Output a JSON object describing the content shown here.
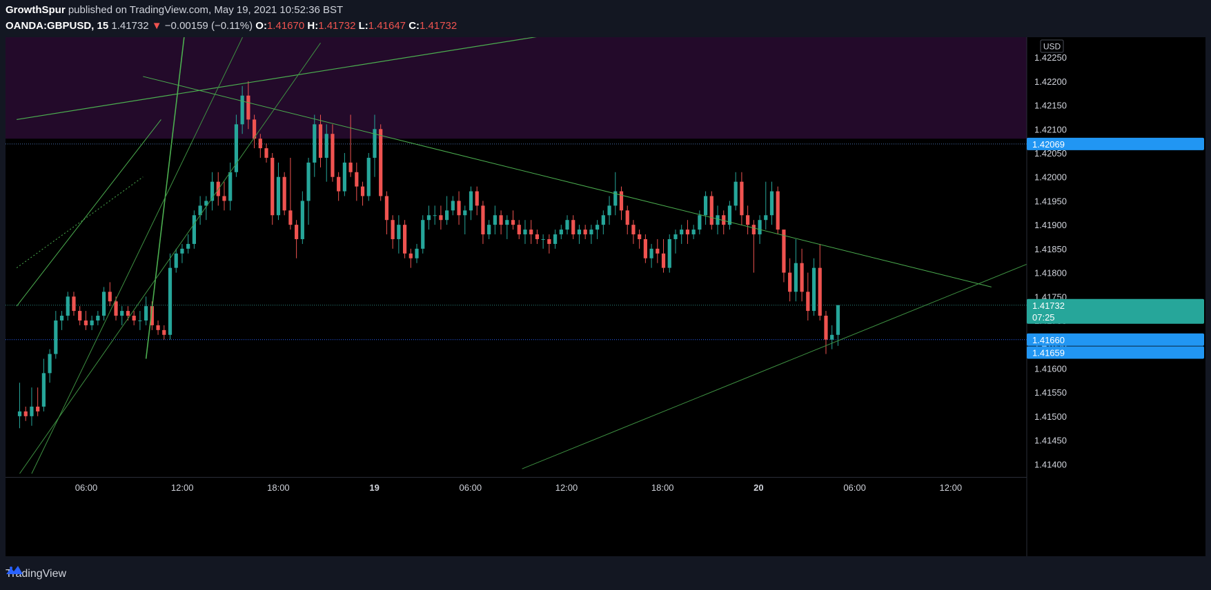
{
  "header": {
    "author": "GrowthSpur",
    "published_text": "published on TradingView.com, May 19, 2021 10:52:36 BST",
    "symbol": "OANDA:GBPUSD, 15",
    "last": "1.41732",
    "change": "−0.00159 (−0.11%)",
    "open_label": "O:",
    "open": "1.41670",
    "high_label": "H:",
    "high": "1.41732",
    "low_label": "L:",
    "low": "1.41647",
    "close_label": "C:",
    "close": "1.41732"
  },
  "footer": {
    "brand": "TradingView"
  },
  "colors": {
    "up": "#26a69a",
    "down": "#ef5350",
    "zone": "#230a2a",
    "trend": "#4caf50",
    "label_blue": "#2196f3",
    "label_teal": "#26a69a"
  },
  "chart_data": {
    "type": "candlestick",
    "currency": "USD",
    "y_ticks": [
      1.4225,
      1.422,
      1.4215,
      1.421,
      1.4205,
      1.42,
      1.4195,
      1.419,
      1.4185,
      1.418,
      1.4175,
      1.417,
      1.4165,
      1.416,
      1.4155,
      1.415,
      1.4145,
      1.414
    ],
    "y_tick_labels": [
      "1.42250",
      "1.42200",
      "1.42150",
      "1.42100",
      "1.42050",
      "1.42000",
      "1.41950",
      "1.41900",
      "1.41850",
      "1.41800",
      "1.41750",
      "1.41700",
      "1.41650",
      "1.41600",
      "1.41550",
      "1.41500",
      "1.41450",
      "1.41400"
    ],
    "ylim": [
      1.41373,
      1.42292
    ],
    "x_ticks": [
      "06:00",
      "12:00",
      "18:00",
      "19",
      "06:00",
      "12:00",
      "18:00",
      "20",
      "06:00",
      "12:00"
    ],
    "bars_per_hour": 4,
    "zone": {
      "from": 1.4208,
      "to": 1.423
    },
    "levels": [
      {
        "value": 1.42069,
        "label": "1.42069",
        "color": "#2196f3",
        "line": "#4a6fb0"
      },
      {
        "value": 1.41732,
        "label": "1.41732",
        "sublabel": "07:25",
        "color": "#26a69a",
        "line": "#2b8b82"
      },
      {
        "value": 1.4166,
        "label": "1.41660",
        "color": "#2196f3",
        "line": "#2962ff"
      },
      {
        "value": 1.41659,
        "label": "1.41659",
        "color": "#2196f3",
        "line": ""
      }
    ],
    "candles": [
      [
        1.415,
        1.4157,
        1.41475,
        1.4151
      ],
      [
        1.4151,
        1.4152,
        1.4149,
        1.415
      ],
      [
        1.415,
        1.4156,
        1.4148,
        1.4152
      ],
      [
        1.4152,
        1.4156,
        1.415,
        1.4151
      ],
      [
        1.4152,
        1.4162,
        1.4151,
        1.4159
      ],
      [
        1.4159,
        1.4164,
        1.4157,
        1.4163
      ],
      [
        1.4163,
        1.4172,
        1.4162,
        1.417
      ],
      [
        1.417,
        1.4172,
        1.4168,
        1.4171
      ],
      [
        1.4171,
        1.4176,
        1.417,
        1.4175
      ],
      [
        1.4175,
        1.4176,
        1.4171,
        1.4172
      ],
      [
        1.4172,
        1.4173,
        1.4169,
        1.417
      ],
      [
        1.417,
        1.4172,
        1.4168,
        1.4169
      ],
      [
        1.4169,
        1.4171,
        1.4168,
        1.417
      ],
      [
        1.417,
        1.4172,
        1.4169,
        1.4171
      ],
      [
        1.4171,
        1.4177,
        1.417,
        1.4176
      ],
      [
        1.4176,
        1.4178,
        1.4173,
        1.4174
      ],
      [
        1.4174,
        1.4175,
        1.417,
        1.4171
      ],
      [
        1.4171,
        1.4173,
        1.4169,
        1.4172
      ],
      [
        1.4172,
        1.4173,
        1.417,
        1.4171
      ],
      [
        1.4171,
        1.4172,
        1.4169,
        1.417
      ],
      [
        1.417,
        1.4172,
        1.4168,
        1.417
      ],
      [
        1.417,
        1.4175,
        1.4169,
        1.4173
      ],
      [
        1.4173,
        1.4174,
        1.4168,
        1.4169
      ],
      [
        1.4169,
        1.417,
        1.4167,
        1.4168
      ],
      [
        1.4168,
        1.4169,
        1.4166,
        1.4167
      ],
      [
        1.4167,
        1.4184,
        1.4166,
        1.4181
      ],
      [
        1.4181,
        1.4185,
        1.418,
        1.4184
      ],
      [
        1.4184,
        1.4186,
        1.4182,
        1.4185
      ],
      [
        1.4185,
        1.4188,
        1.4184,
        1.4186
      ],
      [
        1.4186,
        1.4193,
        1.4185,
        1.4192
      ],
      [
        1.4192,
        1.4196,
        1.419,
        1.4194
      ],
      [
        1.4194,
        1.4196,
        1.4191,
        1.4195
      ],
      [
        1.4195,
        1.4201,
        1.4193,
        1.4199
      ],
      [
        1.4199,
        1.4201,
        1.4194,
        1.4196
      ],
      [
        1.4196,
        1.4199,
        1.4193,
        1.4195
      ],
      [
        1.4195,
        1.4203,
        1.4193,
        1.4201
      ],
      [
        1.4201,
        1.4213,
        1.42,
        1.4211
      ],
      [
        1.4211,
        1.4219,
        1.4209,
        1.4217
      ],
      [
        1.4217,
        1.422,
        1.421,
        1.4212
      ],
      [
        1.4212,
        1.4213,
        1.4206,
        1.4208
      ],
      [
        1.4208,
        1.4209,
        1.4204,
        1.4206
      ],
      [
        1.4206,
        1.4207,
        1.4203,
        1.4204
      ],
      [
        1.4204,
        1.4205,
        1.419,
        1.4192
      ],
      [
        1.4192,
        1.4203,
        1.4191,
        1.42
      ],
      [
        1.42,
        1.4201,
        1.4192,
        1.4193
      ],
      [
        1.4193,
        1.4204,
        1.4189,
        1.419
      ],
      [
        1.419,
        1.4191,
        1.4183,
        1.4187
      ],
      [
        1.4187,
        1.4197,
        1.4186,
        1.4195
      ],
      [
        1.4195,
        1.4204,
        1.419,
        1.4203
      ],
      [
        1.4203,
        1.4213,
        1.42,
        1.4211
      ],
      [
        1.4211,
        1.4213,
        1.4202,
        1.4204
      ],
      [
        1.4204,
        1.4211,
        1.4199,
        1.4209
      ],
      [
        1.4209,
        1.4211,
        1.4199,
        1.42
      ],
      [
        1.42,
        1.4201,
        1.4195,
        1.4197
      ],
      [
        1.4197,
        1.4205,
        1.4196,
        1.4203
      ],
      [
        1.4203,
        1.4213,
        1.42,
        1.4201
      ],
      [
        1.4201,
        1.4203,
        1.4195,
        1.4198
      ],
      [
        1.4198,
        1.4199,
        1.4194,
        1.4196
      ],
      [
        1.4196,
        1.4205,
        1.4195,
        1.4204
      ],
      [
        1.4204,
        1.4213,
        1.42,
        1.421
      ],
      [
        1.421,
        1.4211,
        1.4195,
        1.4196
      ],
      [
        1.4196,
        1.4197,
        1.4188,
        1.4191
      ],
      [
        1.4191,
        1.4192,
        1.4185,
        1.4187
      ],
      [
        1.4187,
        1.4192,
        1.4184,
        1.419
      ],
      [
        1.419,
        1.4191,
        1.4183,
        1.4184
      ],
      [
        1.4184,
        1.4185,
        1.4181,
        1.4183
      ],
      [
        1.4183,
        1.4186,
        1.4182,
        1.4185
      ],
      [
        1.4185,
        1.4192,
        1.4184,
        1.4191
      ],
      [
        1.4191,
        1.4194,
        1.4189,
        1.4192
      ],
      [
        1.4192,
        1.4194,
        1.419,
        1.4192
      ],
      [
        1.4192,
        1.4194,
        1.4189,
        1.4191
      ],
      [
        1.4191,
        1.4196,
        1.419,
        1.4193
      ],
      [
        1.4193,
        1.4196,
        1.4192,
        1.4195
      ],
      [
        1.4195,
        1.4197,
        1.419,
        1.4192
      ],
      [
        1.4192,
        1.4194,
        1.4188,
        1.4193
      ],
      [
        1.4193,
        1.4198,
        1.4191,
        1.4197
      ],
      [
        1.4197,
        1.4198,
        1.4192,
        1.4194
      ],
      [
        1.4194,
        1.4195,
        1.4186,
        1.4188
      ],
      [
        1.4188,
        1.4191,
        1.4187,
        1.419
      ],
      [
        1.419,
        1.4194,
        1.4188,
        1.4192
      ],
      [
        1.4192,
        1.4193,
        1.4188,
        1.419
      ],
      [
        1.419,
        1.4192,
        1.4187,
        1.4191
      ],
      [
        1.4191,
        1.4193,
        1.4189,
        1.419
      ],
      [
        1.419,
        1.4191,
        1.4187,
        1.4188
      ],
      [
        1.4188,
        1.4191,
        1.4186,
        1.4189
      ],
      [
        1.4189,
        1.4191,
        1.4186,
        1.4188
      ],
      [
        1.4188,
        1.4189,
        1.4186,
        1.4187
      ],
      [
        1.4187,
        1.4188,
        1.4185,
        1.4187
      ],
      [
        1.4187,
        1.4188,
        1.4184,
        1.4186
      ],
      [
        1.4186,
        1.4189,
        1.4185,
        1.4188
      ],
      [
        1.4188,
        1.419,
        1.4187,
        1.4189
      ],
      [
        1.4189,
        1.4192,
        1.4188,
        1.4191
      ],
      [
        1.4191,
        1.4192,
        1.4187,
        1.4188
      ],
      [
        1.4188,
        1.419,
        1.4186,
        1.4189
      ],
      [
        1.4189,
        1.419,
        1.4187,
        1.4188
      ],
      [
        1.4188,
        1.419,
        1.4186,
        1.4189
      ],
      [
        1.4189,
        1.4191,
        1.4187,
        1.419
      ],
      [
        1.419,
        1.4193,
        1.4188,
        1.4192
      ],
      [
        1.4192,
        1.4196,
        1.419,
        1.4194
      ],
      [
        1.4194,
        1.4201,
        1.4192,
        1.4197
      ],
      [
        1.4197,
        1.4198,
        1.4191,
        1.4193
      ],
      [
        1.4193,
        1.4194,
        1.4188,
        1.419
      ],
      [
        1.419,
        1.4191,
        1.4186,
        1.4188
      ],
      [
        1.4188,
        1.4189,
        1.4185,
        1.4187
      ],
      [
        1.4187,
        1.4188,
        1.4182,
        1.4183
      ],
      [
        1.4183,
        1.4186,
        1.4181,
        1.4185
      ],
      [
        1.4185,
        1.4187,
        1.4182,
        1.4184
      ],
      [
        1.4184,
        1.4187,
        1.418,
        1.4181
      ],
      [
        1.4181,
        1.4188,
        1.418,
        1.4187
      ],
      [
        1.4187,
        1.4189,
        1.4184,
        1.4188
      ],
      [
        1.4188,
        1.419,
        1.4186,
        1.4189
      ],
      [
        1.4189,
        1.4191,
        1.4186,
        1.4188
      ],
      [
        1.4188,
        1.419,
        1.4187,
        1.4189
      ],
      [
        1.4189,
        1.4193,
        1.4188,
        1.4192
      ],
      [
        1.4192,
        1.4197,
        1.419,
        1.4196
      ],
      [
        1.4196,
        1.4197,
        1.4189,
        1.419
      ],
      [
        1.419,
        1.4194,
        1.4188,
        1.4192
      ],
      [
        1.4192,
        1.4193,
        1.4188,
        1.419
      ],
      [
        1.419,
        1.4195,
        1.4189,
        1.4194
      ],
      [
        1.4194,
        1.4201,
        1.4193,
        1.4199
      ],
      [
        1.4199,
        1.4201,
        1.419,
        1.4192
      ],
      [
        1.4192,
        1.4194,
        1.4188,
        1.419
      ],
      [
        1.419,
        1.4191,
        1.418,
        1.4188
      ],
      [
        1.4188,
        1.4192,
        1.4186,
        1.4191
      ],
      [
        1.4191,
        1.4199,
        1.4189,
        1.4192
      ],
      [
        1.4192,
        1.4199,
        1.419,
        1.4197
      ],
      [
        1.4197,
        1.4198,
        1.4188,
        1.4189
      ],
      [
        1.4189,
        1.4189,
        1.4178,
        1.418
      ],
      [
        1.418,
        1.4183,
        1.4174,
        1.4176
      ],
      [
        1.4176,
        1.4187,
        1.4174,
        1.4182
      ],
      [
        1.4182,
        1.4185,
        1.4174,
        1.4176
      ],
      [
        1.4176,
        1.418,
        1.417,
        1.4172
      ],
      [
        1.4172,
        1.4183,
        1.4171,
        1.4181
      ],
      [
        1.4181,
        1.4186,
        1.417,
        1.4171
      ],
      [
        1.4171,
        1.4172,
        1.4163,
        1.4166
      ],
      [
        1.4166,
        1.4169,
        1.4164,
        1.4167
      ],
      [
        1.4167,
        1.41732,
        1.41647,
        1.41732
      ]
    ],
    "trendlines": [
      {
        "name": "",
        "from": [
          -0.5,
          1.4212
        ],
        "to": [
          99.5,
          1.4232
        ],
        "color": "#4caf50",
        "width": 1.2,
        "dash": ""
      },
      {
        "name": "",
        "from": [
          21.0,
          1.4162
        ],
        "to": [
          27.5,
          1.4231
        ],
        "color": "#4caf50",
        "width": 1.6,
        "dash": ""
      },
      {
        "name": "",
        "from": [
          2.0,
          1.4138
        ],
        "to": [
          38.5,
          1.4233
        ],
        "color": "#3e9142",
        "width": 1.0,
        "dash": ""
      },
      {
        "name": "",
        "from": [
          0.0,
          1.4138
        ],
        "to": [
          50.0,
          1.4228
        ],
        "color": "#3e9142",
        "width": 1.0,
        "dash": ""
      },
      {
        "name": "",
        "from": [
          -0.5,
          1.4173
        ],
        "to": [
          23.5,
          1.4212
        ],
        "color": "#4caf50",
        "width": 1.0,
        "dash": ""
      },
      {
        "name": "",
        "from": [
          -0.5,
          1.4181
        ],
        "to": [
          20.5,
          1.42
        ],
        "color": "#4caf50",
        "width": 1.0,
        "dash": "2,3"
      },
      {
        "name": "",
        "from": [
          20.5,
          1.4221
        ],
        "to": [
          161.5,
          1.4177
        ],
        "color": "#4caf50",
        "width": 1.0,
        "dash": ""
      },
      {
        "name": "",
        "from": [
          83.5,
          1.4139
        ],
        "to": [
          185.5,
          1.4191
        ],
        "color": "#3e9142",
        "width": 1.0,
        "dash": ""
      }
    ]
  }
}
